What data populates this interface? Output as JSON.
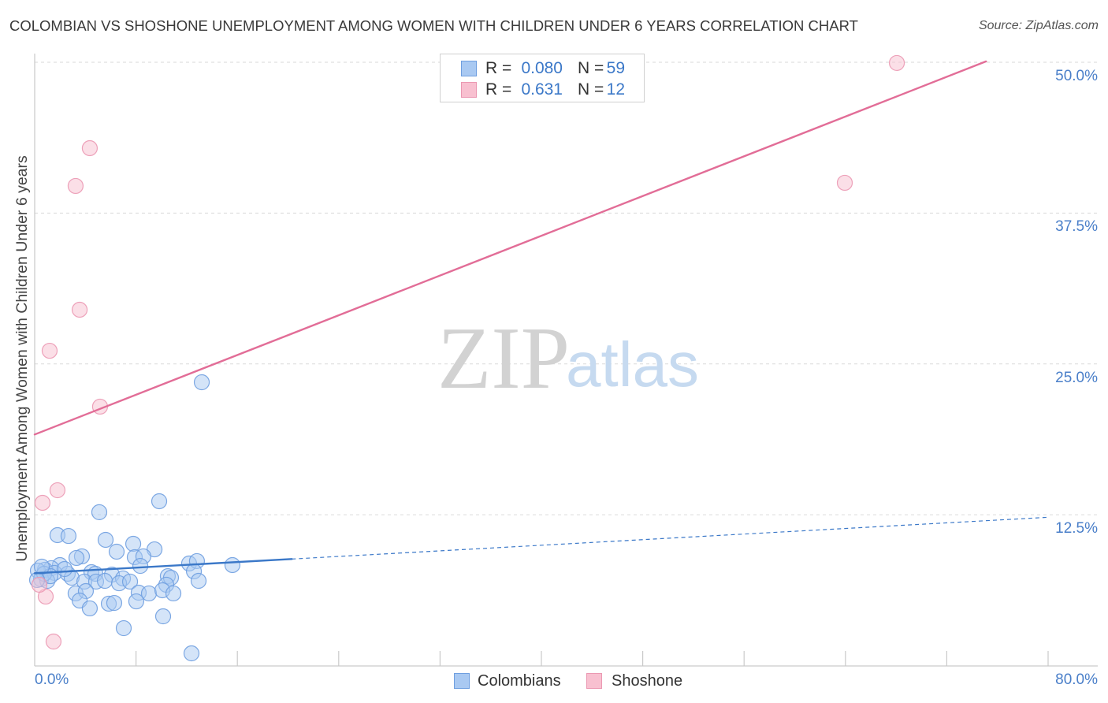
{
  "chart_data": {
    "type": "scatter",
    "title": "COLOMBIAN VS SHOSHONE UNEMPLOYMENT AMONG WOMEN WITH CHILDREN UNDER 6 YEARS CORRELATION CHART",
    "source": "Source: ZipAtlas.com",
    "xlabel": "",
    "ylabel": "Unemployment Among Women with Children Under 6 years",
    "xlim": [
      0,
      80
    ],
    "ylim": [
      0,
      50
    ],
    "grid": true,
    "legend_position": "top-center",
    "x_ticks": [
      {
        "value": 0,
        "label": "0.0%"
      },
      {
        "value": 80,
        "label": "80.0%"
      }
    ],
    "x_minor_ticks": [
      8,
      16,
      24,
      32,
      40,
      48,
      56,
      64,
      72,
      80
    ],
    "y_ticks": [
      {
        "value": 12.5,
        "label": "12.5%"
      },
      {
        "value": 25,
        "label": "25.0%"
      },
      {
        "value": 37.5,
        "label": "37.5%"
      },
      {
        "value": 50,
        "label": "50.0%"
      }
    ],
    "stat_labels": {
      "r": "R =",
      "n": "N ="
    },
    "series": [
      {
        "name": "Colombians",
        "color": "#3b78c8",
        "marker_color": "#a9c9f2",
        "marker_stroke": "#6f9fe0",
        "r": "0.080",
        "n": "59",
        "trend": {
          "solid": [
            [
              0,
              7.65
            ],
            [
              20.3,
              8.83
            ]
          ],
          "dashed": [
            [
              20.3,
              8.83
            ],
            [
              80,
              12.29
            ]
          ]
        },
        "points": [
          [
            13.19,
            23.48
          ],
          [
            9.83,
            13.62
          ],
          [
            5.1,
            12.71
          ],
          [
            1.8,
            10.81
          ],
          [
            2.67,
            10.74
          ],
          [
            5.6,
            10.42
          ],
          [
            7.78,
            10.09
          ],
          [
            6.47,
            9.44
          ],
          [
            9.46,
            9.63
          ],
          [
            3.73,
            9.05
          ],
          [
            3.3,
            8.92
          ],
          [
            7.9,
            8.98
          ],
          [
            8.58,
            9.05
          ],
          [
            12.19,
            8.46
          ],
          [
            12.81,
            8.66
          ],
          [
            15.61,
            8.33
          ],
          [
            1.99,
            8.33
          ],
          [
            8.34,
            8.26
          ],
          [
            1.31,
            8.07
          ],
          [
            0.81,
            7.94
          ],
          [
            1.56,
            7.68
          ],
          [
            2.61,
            7.61
          ],
          [
            4.48,
            7.74
          ],
          [
            4.79,
            7.61
          ],
          [
            6.1,
            7.54
          ],
          [
            6.97,
            7.22
          ],
          [
            10.51,
            7.41
          ],
          [
            10.76,
            7.28
          ],
          [
            12.57,
            7.81
          ],
          [
            0.25,
            7.87
          ],
          [
            0.5,
            7.15
          ],
          [
            1.0,
            7.02
          ],
          [
            2.92,
            7.28
          ],
          [
            3.92,
            6.96
          ],
          [
            4.85,
            6.96
          ],
          [
            5.54,
            7.02
          ],
          [
            6.66,
            6.82
          ],
          [
            7.53,
            6.96
          ],
          [
            10.39,
            6.7
          ],
          [
            12.94,
            7.02
          ],
          [
            3.23,
            5.98
          ],
          [
            4.04,
            6.17
          ],
          [
            8.21,
            6.04
          ],
          [
            9.02,
            5.98
          ],
          [
            10.08,
            6.24
          ],
          [
            10.95,
            5.98
          ],
          [
            3.55,
            5.39
          ],
          [
            5.85,
            5.13
          ],
          [
            6.28,
            5.19
          ],
          [
            8.02,
            5.32
          ],
          [
            4.35,
            4.74
          ],
          [
            10.14,
            4.08
          ],
          [
            7.03,
            3.1
          ],
          [
            12.38,
            1.01
          ],
          [
            0.75,
            7.61
          ],
          [
            2.36,
            8.0
          ],
          [
            1.24,
            7.41
          ],
          [
            0.19,
            7.09
          ],
          [
            0.56,
            8.2
          ]
        ]
      },
      {
        "name": "Shoshone",
        "color": "#e26d97",
        "marker_color": "#f8c0d0",
        "marker_stroke": "#eb98b2",
        "r": "0.631",
        "n": "12",
        "trend": {
          "solid": [
            [
              0,
              19.15
            ],
            [
              75.1,
              50.07
            ]
          ]
        },
        "points": [
          [
            68.06,
            49.94
          ],
          [
            4.35,
            42.88
          ],
          [
            3.23,
            39.75
          ],
          [
            63.95,
            40.01
          ],
          [
            3.55,
            29.49
          ],
          [
            1.18,
            26.09
          ],
          [
            5.16,
            21.46
          ],
          [
            1.8,
            14.53
          ],
          [
            0.62,
            13.49
          ],
          [
            0.87,
            5.72
          ],
          [
            1.49,
            1.99
          ],
          [
            0.37,
            6.7
          ]
        ]
      }
    ]
  },
  "watermark": {
    "zip": "ZIP",
    "atlas": "atlas"
  }
}
